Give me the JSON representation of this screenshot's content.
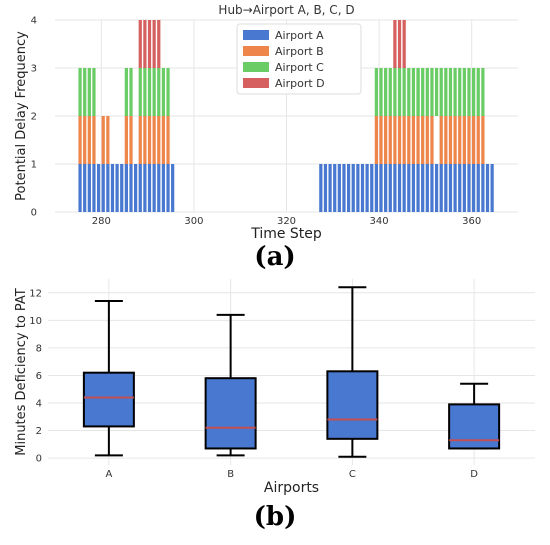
{
  "chart_data": [
    {
      "type": "bar",
      "stacked": true,
      "title": "Hub→Airport A, B, C, D",
      "xlabel": "Time Step",
      "ylabel": "Potential Delay Frequency",
      "xlim": [
        270,
        370
      ],
      "ylim": [
        0,
        4
      ],
      "xticks": [
        280,
        300,
        320,
        340,
        360
      ],
      "yticks": [
        0,
        1,
        2,
        3,
        4
      ],
      "grid": true,
      "legend": "top-center",
      "series": [
        {
          "name": "Airport A",
          "color": "#4878d0",
          "segments": [
            [
              275,
              296
            ],
            [
              327,
              365
            ]
          ]
        },
        {
          "name": "Airport B",
          "color": "#ee854a",
          "segments": [
            [
              275,
              279
            ],
            [
              280,
              282
            ],
            [
              285,
              287
            ],
            [
              288,
              295
            ],
            [
              339,
              352
            ],
            [
              353,
              356
            ],
            [
              356,
              363
            ]
          ]
        },
        {
          "name": "Airport C",
          "color": "#6acc64",
          "segments": [
            [
              275,
              276
            ],
            [
              276,
              279
            ],
            [
              285,
              287
            ],
            [
              288,
              295
            ],
            [
              339,
              349
            ],
            [
              348,
              352
            ],
            [
              352,
              356
            ],
            [
              356,
              363
            ]
          ]
        },
        {
          "name": "Airport D",
          "color": "#d65f5f",
          "segments": [
            [
              288,
              293
            ],
            [
              343,
              346
            ]
          ]
        }
      ]
    },
    {
      "type": "box",
      "title": "",
      "xlabel": "Airports",
      "ylabel": "Minutes Deficiency to PAT",
      "ylim": [
        -0.5,
        13
      ],
      "yticks": [
        0,
        2,
        4,
        6,
        8,
        10,
        12
      ],
      "grid": true,
      "box_color": "#4878d0",
      "median_color": "#c44e52",
      "categories": [
        "A",
        "B",
        "C",
        "D"
      ],
      "boxes": [
        {
          "min": 0.2,
          "q1": 2.3,
          "median": 4.4,
          "q3": 6.2,
          "max": 11.4
        },
        {
          "min": 0.2,
          "q1": 0.7,
          "median": 2.2,
          "q3": 5.8,
          "max": 10.4
        },
        {
          "min": 0.1,
          "q1": 1.4,
          "median": 2.8,
          "q3": 6.3,
          "max": 12.4
        },
        {
          "min": 0.7,
          "q1": 0.7,
          "median": 1.3,
          "q3": 3.9,
          "max": 5.4
        }
      ]
    }
  ],
  "labels": {
    "panel_a": "(a)",
    "panel_b": "(b)"
  }
}
